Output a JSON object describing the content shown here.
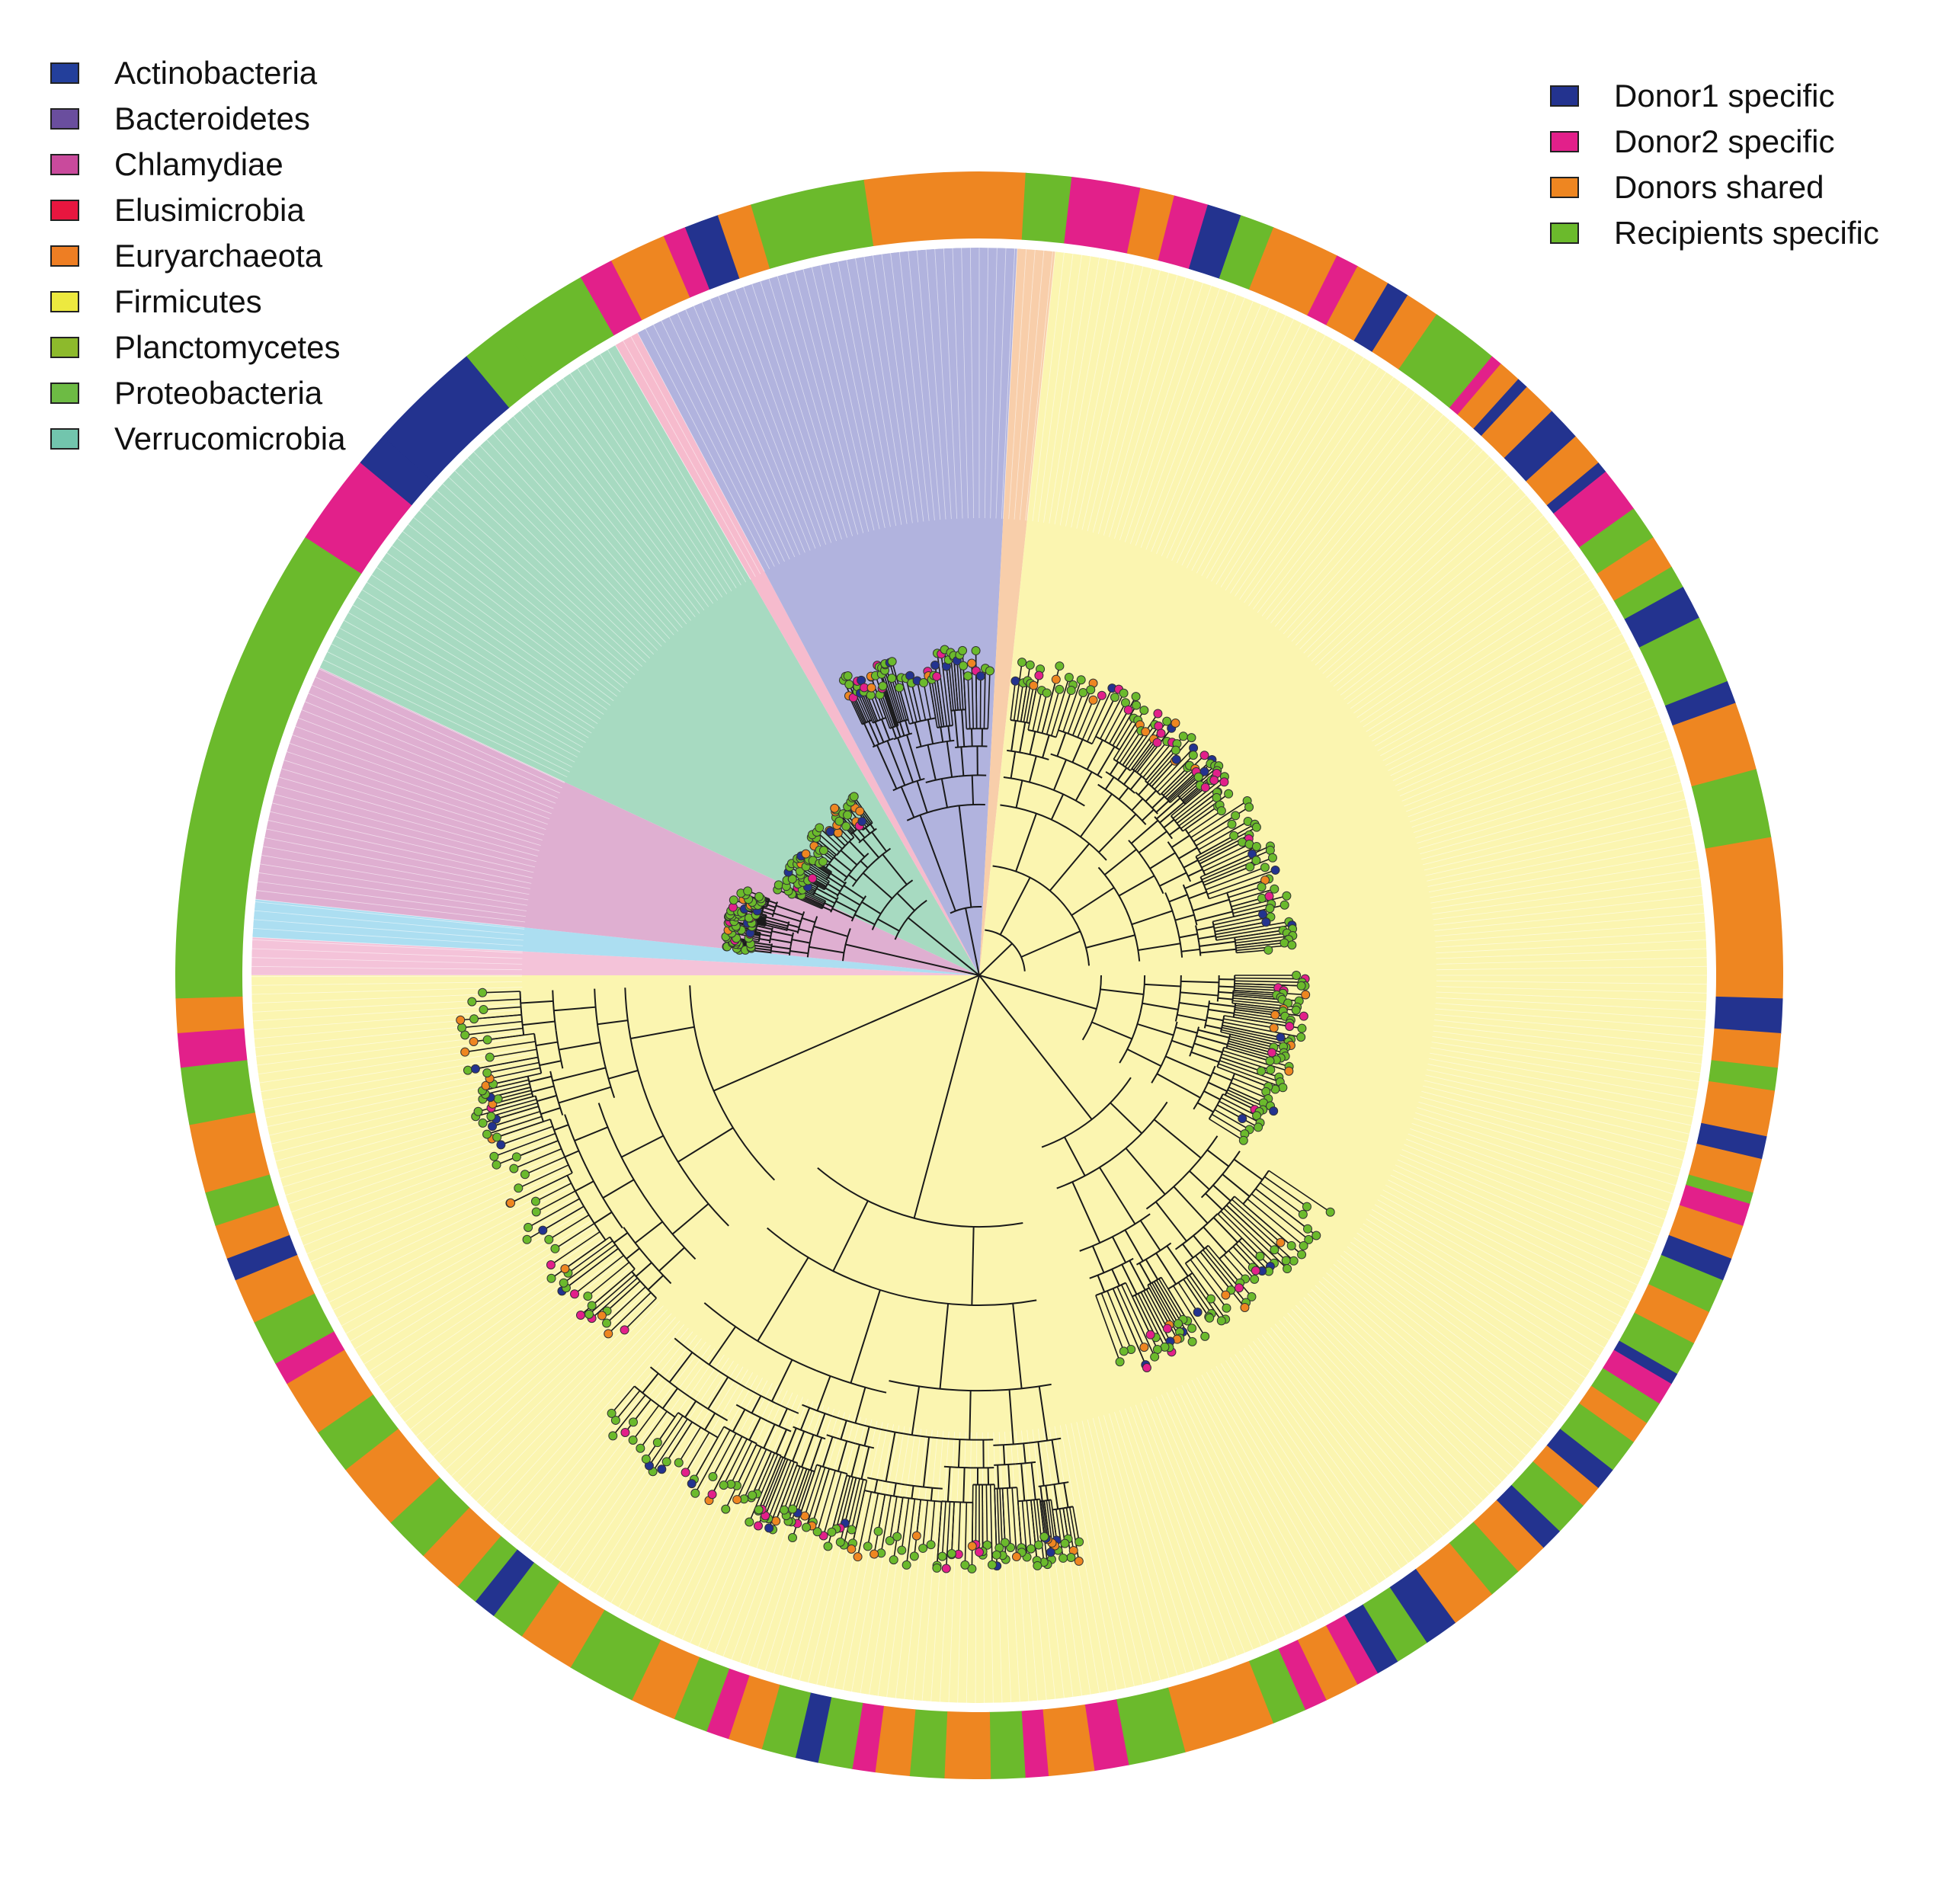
{
  "phylum_legend": [
    {
      "label": "Actinobacteria",
      "color": "#233F9B"
    },
    {
      "label": "Bacteroidetes",
      "color": "#6A4E9E"
    },
    {
      "label": "Chlamydiae",
      "color": "#C94A9C"
    },
    {
      "label": "Elusimicrobia",
      "color": "#E8163F"
    },
    {
      "label": "Euryarchaeota",
      "color": "#EE7E23"
    },
    {
      "label": "Firmicutes",
      "color": "#EDE93F"
    },
    {
      "label": "Planctomycetes",
      "color": "#8DBA2C"
    },
    {
      "label": "Proteobacteria",
      "color": "#6DBB44"
    },
    {
      "label": "Verrucomicrobia",
      "color": "#72C5AD"
    }
  ],
  "source_legend": [
    {
      "label": "Donor1 specific",
      "color": "#23338F"
    },
    {
      "label": "Donor2 specific",
      "color": "#E2208A"
    },
    {
      "label": "Donors shared",
      "color": "#EE8621"
    },
    {
      "label": "Recipients specific",
      "color": "#6BBA2C"
    }
  ],
  "clade_sectors": [
    {
      "phylum": "Verrucomicrobia",
      "color": "#F2B8D2",
      "start_deg": 180,
      "end_deg": 183
    },
    {
      "phylum": "Proteobacteria",
      "color": "#9ED8EE",
      "start_deg": 183,
      "end_deg": 186
    },
    {
      "phylum": "Chlamydiae",
      "color": "#D9A1C9",
      "start_deg": 186,
      "end_deg": 205
    },
    {
      "phylum": "Verrucomicrobia",
      "color": "#98D3B6",
      "start_deg": 205,
      "end_deg": 240
    },
    {
      "phylum": "Elusimicrobia",
      "color": "#F4AFC4",
      "start_deg": 240,
      "end_deg": 242
    },
    {
      "phylum": "Bacteroidetes",
      "color": "#A3A6D8",
      "start_deg": 242,
      "end_deg": 273
    },
    {
      "phylum": "Euryarchaeota",
      "color": "#F7C59B",
      "start_deg": 273,
      "end_deg": 276
    },
    {
      "phylum": "Firmicutes",
      "color": "#FAF3A2",
      "start_deg": 276,
      "end_deg": 540
    }
  ],
  "outer_ring": [
    [
      "#6BBA2C",
      40
    ],
    [
      "#E2208A",
      8
    ],
    [
      "#23338F",
      3
    ],
    [
      "#23338F",
      10
    ],
    [
      "#6BBA2C",
      4
    ],
    [
      "#6BBA2C",
      8
    ],
    [
      "#E2208A",
      3
    ],
    [
      "#EE8621",
      5
    ],
    [
      "#E2208A",
      2
    ],
    [
      "#23338F",
      3
    ],
    [
      "#EE8621",
      3
    ],
    [
      "#6BBA2C",
      10
    ],
    [
      "#EE8621",
      14
    ],
    [
      "#6BBA2C",
      4
    ],
    [
      "#E2208A",
      6
    ],
    [
      "#EE8621",
      3
    ],
    [
      "#E2208A",
      3
    ],
    [
      "#23338F",
      3
    ],
    [
      "#6BBA2C",
      3
    ],
    [
      "#EE8621",
      6
    ],
    [
      "#E2208A",
      2
    ],
    [
      "#EE8621",
      3
    ],
    [
      "#23338F",
      2
    ],
    [
      "#EE8621",
      3
    ],
    [
      "#6BBA2C",
      6
    ],
    [
      "#E2208A",
      1
    ],
    [
      "#EE8621",
      2
    ],
    [
      "#23338F",
      1
    ],
    [
      "#EE8621",
      3
    ],
    [
      "#23338F",
      3
    ],
    [
      "#EE8621",
      3
    ],
    [
      "#23338F",
      1
    ],
    [
      "#E2208A",
      4
    ],
    [
      "#6BBA2C",
      3
    ],
    [
      "#EE8621",
      3
    ],
    [
      "#6BBA2C",
      2
    ],
    [
      "#23338F",
      3
    ],
    [
      "#6BBA2C",
      6
    ],
    [
      "#23338F",
      2
    ],
    [
      "#EE8621",
      6
    ],
    [
      "#6BBA2C",
      6
    ],
    [
      "#EE8621",
      14
    ],
    [
      "#23338F",
      3
    ],
    [
      "#EE8621",
      3
    ],
    [
      "#6BBA2C",
      2
    ],
    [
      "#EE8621",
      4
    ],
    [
      "#23338F",
      2
    ],
    [
      "#EE8621",
      3
    ],
    [
      "#6BBA2C",
      1
    ],
    [
      "#E2208A",
      2
    ],
    [
      "#EE8621",
      3
    ],
    [
      "#23338F",
      2
    ],
    [
      "#6BBA2C",
      3
    ],
    [
      "#EE8621",
      3
    ],
    [
      "#6BBA2C",
      3
    ],
    [
      "#23338F",
      1
    ],
    [
      "#E2208A",
      2
    ],
    [
      "#6BBA2C",
      2
    ],
    [
      "#EE8621",
      2
    ],
    [
      "#6BBA2C",
      3
    ],
    [
      "#23338F",
      2
    ],
    [
      "#EE8621",
      2
    ],
    [
      "#6BBA2C",
      3
    ],
    [
      "#23338F",
      2
    ],
    [
      "#EE8621",
      3
    ],
    [
      "#6BBA2C",
      3
    ],
    [
      "#EE8621",
      4
    ],
    [
      "#23338F",
      3
    ],
    [
      "#6BBA2C",
      3
    ],
    [
      "#23338F",
      2
    ],
    [
      "#E2208A",
      2
    ],
    [
      "#EE8621",
      3
    ],
    [
      "#E2208A",
      2
    ],
    [
      "#6BBA2C",
      3
    ],
    [
      "#EE8621",
      8
    ],
    [
      "#6BBA2C",
      5
    ],
    [
      "#E2208A",
      3
    ],
    [
      "#EE8621",
      4
    ],
    [
      "#E2208A",
      2
    ],
    [
      "#6BBA2C",
      3
    ],
    [
      "#EE8621",
      4
    ],
    [
      "#6BBA2C",
      3
    ],
    [
      "#EE8621",
      3
    ],
    [
      "#E2208A",
      2
    ],
    [
      "#6BBA2C",
      3
    ],
    [
      "#23338F",
      2
    ],
    [
      "#6BBA2C",
      3
    ],
    [
      "#EE8621",
      3
    ],
    [
      "#E2208A",
      2
    ],
    [
      "#6BBA2C",
      3
    ],
    [
      "#EE8621",
      4
    ],
    [
      "#6BBA2C",
      6
    ],
    [
      "#EE8621",
      5
    ],
    [
      "#6BBA2C",
      3
    ],
    [
      "#23338F",
      2
    ],
    [
      "#6BBA2C",
      2
    ],
    [
      "#EE8621",
      4
    ],
    [
      "#6BBA2C",
      4
    ],
    [
      "#EE8621",
      6
    ],
    [
      "#6BBA2C",
      4
    ],
    [
      "#EE8621",
      5
    ],
    [
      "#E2208A",
      2
    ],
    [
      "#6BBA2C",
      4
    ],
    [
      "#EE8621",
      4
    ],
    [
      "#23338F",
      2
    ],
    [
      "#EE8621",
      3
    ],
    [
      "#6BBA2C",
      3
    ],
    [
      "#EE8621",
      6
    ],
    [
      "#6BBA2C",
      5
    ],
    [
      "#E2208A",
      3
    ],
    [
      "#EE8621",
      3
    ],
    [
      "#6BBA2C",
      2
    ]
  ]
}
